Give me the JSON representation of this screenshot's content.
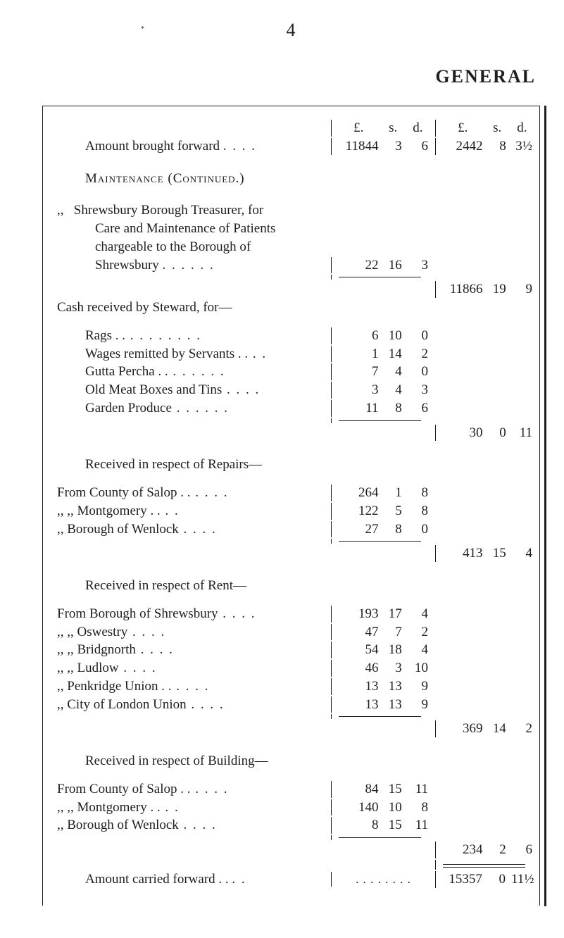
{
  "page_number": "4",
  "heading": "GENERAL",
  "money_header": {
    "L": "£.",
    "S": "s.",
    "D": "d."
  },
  "row_brought_forward": {
    "desc": "Amount brought forward",
    "leaders": " . .   . .",
    "m": {
      "L": "11844",
      "S": "3",
      "D": "6"
    },
    "t": {
      "L": "2442",
      "S": "8",
      "D": "3½"
    }
  },
  "maintenance_label": "Maintenance (Continued.)",
  "shrewsbury": {
    "ditto": ",,",
    "line1": "Shrewsbury Borough Treasurer, for",
    "line2": "Care and Maintenance of Patients",
    "line3": "chargeable  to  the  Borough  of",
    "line4_desc": "Shrewsbury",
    "line4_leaders": " . .   . .   . .",
    "m": {
      "L": "22",
      "S": "16",
      "D": "3"
    }
  },
  "total_maintenance": {
    "L": "11866",
    "S": "19",
    "D": "9"
  },
  "cash_received_label": "Cash received by Steward, for—",
  "steward_rows": [
    {
      "desc": "Rags  . .",
      "leaders": "  . .   . .   . .   . .",
      "L": "6",
      "S": "10",
      "D": "0"
    },
    {
      "desc": "Wages remitted by Servants . .",
      "leaders": "  . .",
      "L": "1",
      "S": "14",
      "D": "2"
    },
    {
      "desc": "Gutta Percha . .",
      "leaders": "  . .   . .   . .",
      "L": "7",
      "S": "4",
      "D": "0"
    },
    {
      "desc": "Old Meat Boxes and Tins",
      "leaders": "  . .   . .",
      "L": "3",
      "S": "4",
      "D": "3"
    },
    {
      "desc": "Garden Produce",
      "leaders": "  . .   . .   . .",
      "L": "11",
      "S": "8",
      "D": "6"
    }
  ],
  "total_steward": {
    "L": "30",
    "S": "0",
    "D": "11"
  },
  "repairs_label": "Received in respect of Repairs—",
  "repairs_rows": [
    {
      "desc": "From County of Salop . .",
      "leaders": "  . .   . .",
      "L": "264",
      "S": "1",
      "D": "8"
    },
    {
      "desc": ",,      ,,           Montgomery  . .",
      "leaders": "  . .",
      "L": "122",
      "S": "5",
      "D": "8"
    },
    {
      "desc": ",,  Borough of Wenlock",
      "leaders": "  . .   . .",
      "L": "27",
      "S": "8",
      "D": "0"
    }
  ],
  "total_repairs": {
    "L": "413",
    "S": "15",
    "D": "4"
  },
  "rent_label": "Received in respect of Rent—",
  "rent_rows": [
    {
      "desc": "From Borough of Shrewsbury",
      "leaders": "  . .   . .",
      "L": "193",
      "S": "17",
      "D": "4"
    },
    {
      "desc": ",,       ,,         Oswestry",
      "leaders": "  . .   . .",
      "L": "47",
      "S": "7",
      "D": "2"
    },
    {
      "desc": ",,       ,,         Bridgnorth",
      "leaders": "  . .   . .",
      "L": "54",
      "S": "18",
      "D": "4"
    },
    {
      "desc": ",,       ,,         Ludlow",
      "leaders": "  . .   . .",
      "L": "46",
      "S": "3",
      "D": "10"
    },
    {
      "desc": ",,   Penkridge Union    . .",
      "leaders": "  . .   . .",
      "L": "13",
      "S": "13",
      "D": "9"
    },
    {
      "desc": ",,   City of London Union",
      "leaders": "  . .   . .",
      "L": "13",
      "S": "13",
      "D": "9"
    }
  ],
  "total_rent": {
    "L": "369",
    "S": "14",
    "D": "2"
  },
  "building_label": "Received in respect of Building—",
  "building_rows": [
    {
      "desc": "From County of Salop  . .",
      "leaders": "  . .   . .",
      "L": "84",
      "S": "15",
      "D": "11"
    },
    {
      "desc": ",,       ,,         Montgomery   . .",
      "leaders": "  . .",
      "L": "140",
      "S": "10",
      "D": "8"
    },
    {
      "desc": ",,  Borough of Wenlock",
      "leaders": "  . .   . .",
      "L": "8",
      "S": "15",
      "D": "11"
    }
  ],
  "total_building": {
    "L": "234",
    "S": "2",
    "D": "6"
  },
  "carried_forward": {
    "desc": "Amount carried forward . .",
    "leaders": "  . .",
    "dots": ". . . . . . . .",
    "t": {
      "L": "15357",
      "S": "0",
      "D": "11½"
    }
  }
}
